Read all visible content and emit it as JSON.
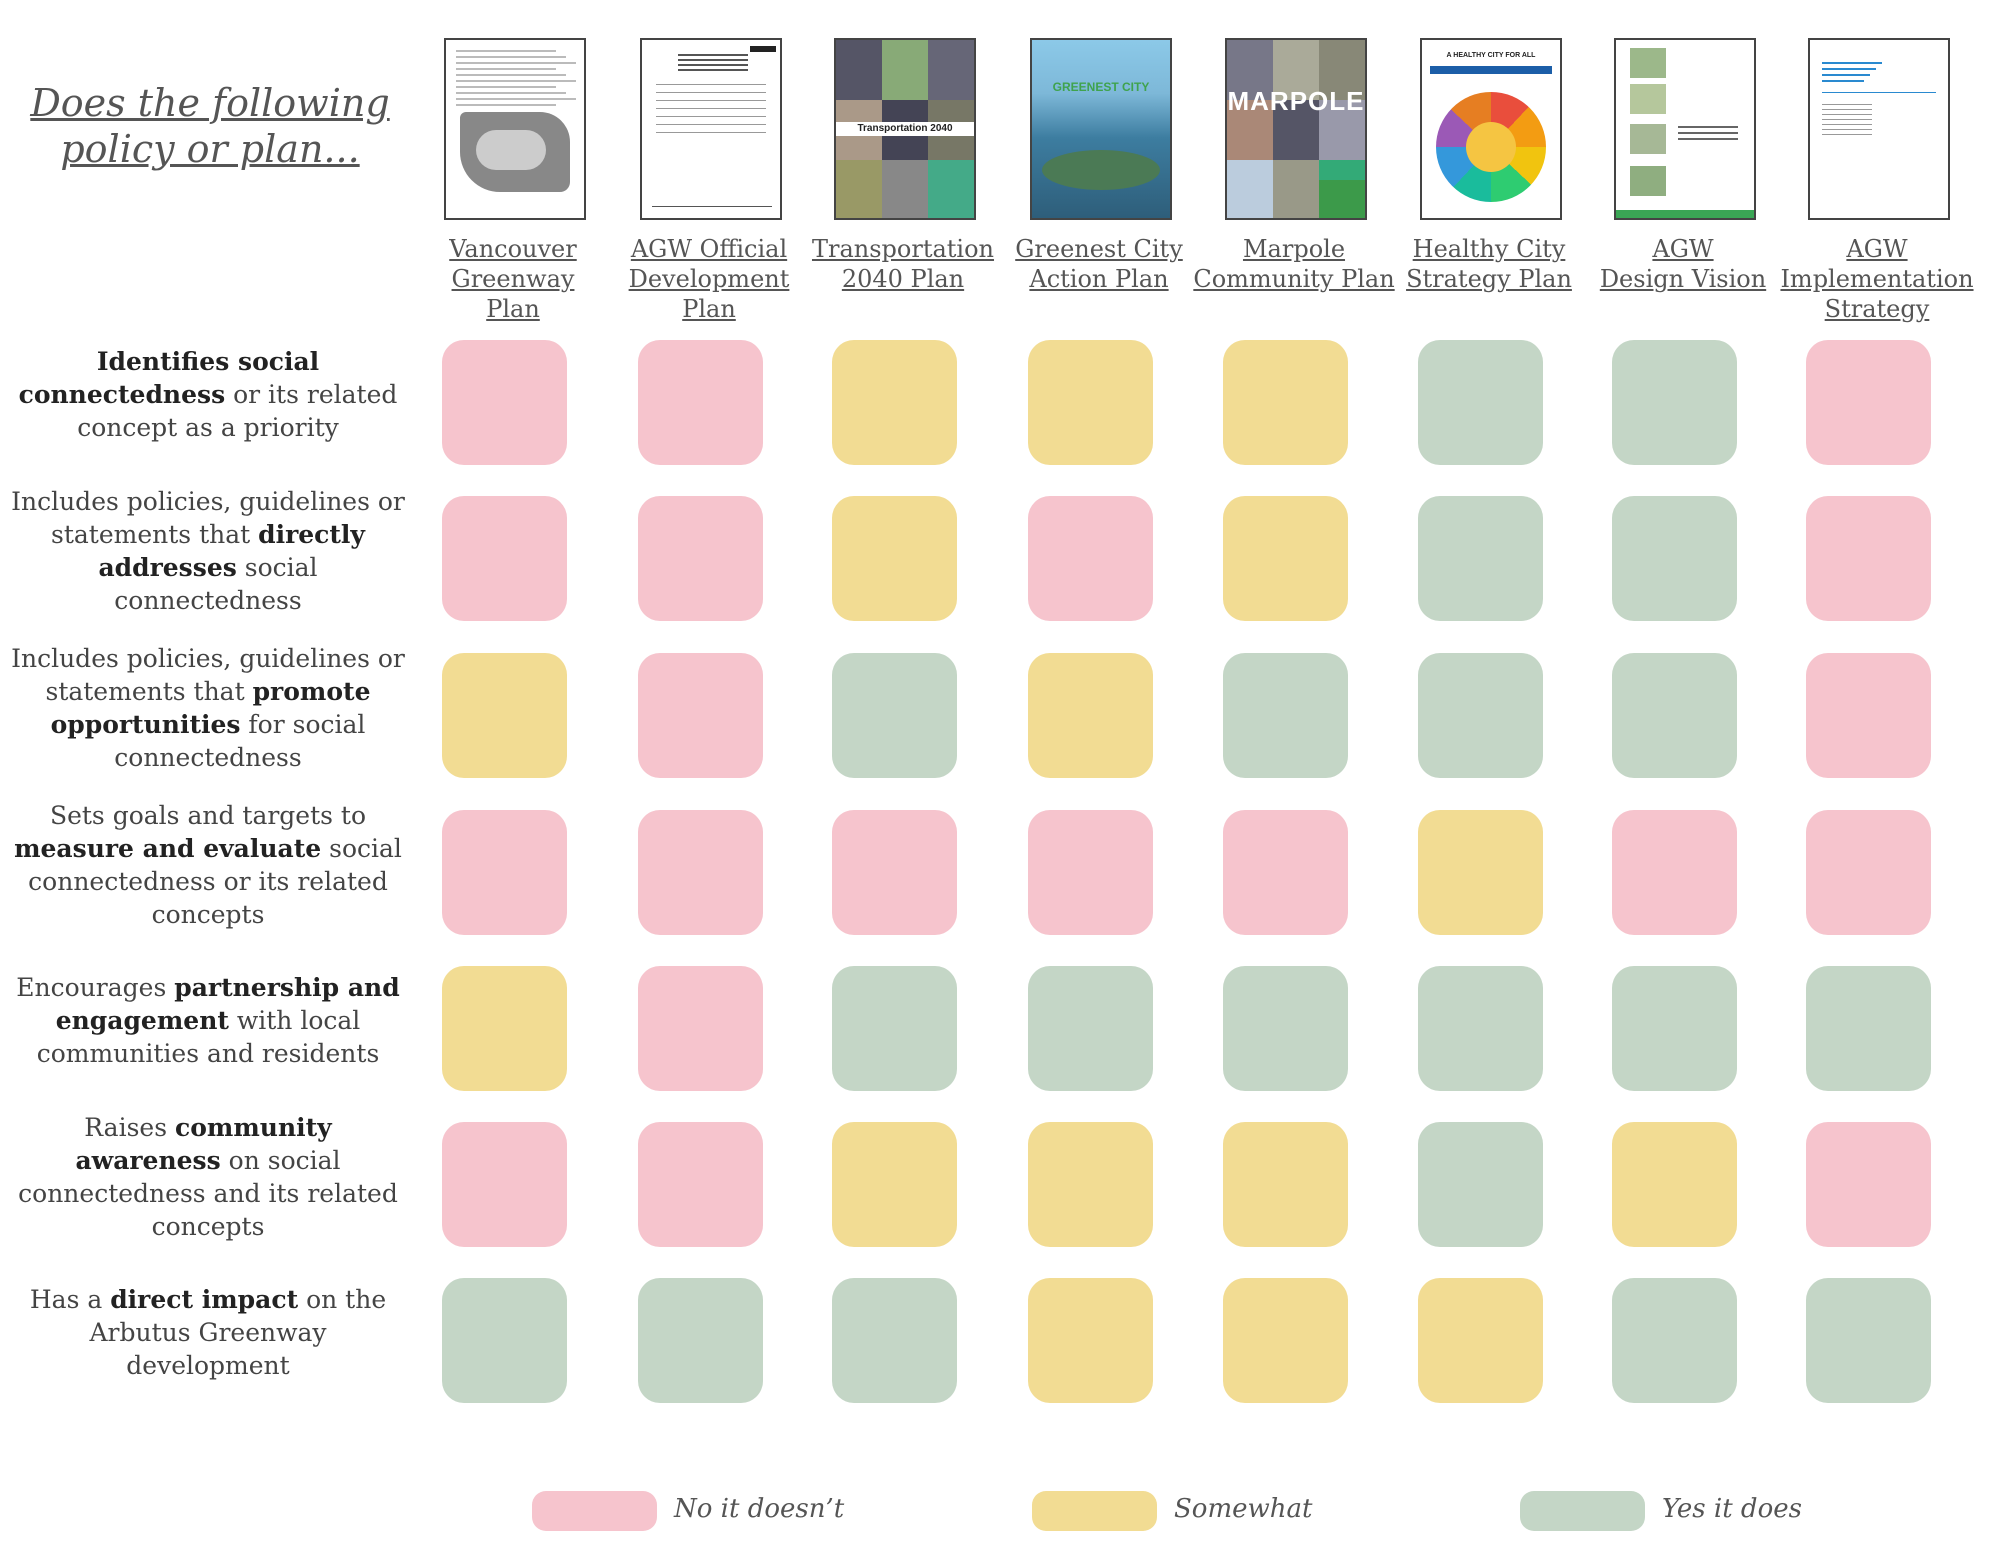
{
  "heading": "Does the following policy or plan...",
  "colors": {
    "no": "#f6c4cd",
    "somewhat": "#f2dc93",
    "yes": "#c4d6c6"
  },
  "columns": [
    {
      "label_lines": [
        "Vancouver",
        "Greenway",
        "Plan"
      ],
      "thumb": "doc-map",
      "cover_text": ""
    },
    {
      "label_lines": [
        "AGW Official",
        "Development",
        "Plan"
      ],
      "thumb": "doc-text",
      "cover_text": ""
    },
    {
      "label_lines": [
        "Transportation",
        "2040 Plan"
      ],
      "thumb": "doc-photos",
      "cover_text": "Transportation 2040"
    },
    {
      "label_lines": [
        "Greenest City",
        "Action Plan"
      ],
      "thumb": "doc-greenest",
      "cover_text": "GREENEST CITY"
    },
    {
      "label_lines": [
        "Marpole",
        "Community Plan"
      ],
      "thumb": "doc-marpole",
      "cover_text": "MARPOLE"
    },
    {
      "label_lines": [
        "Healthy City",
        "Strategy Plan"
      ],
      "thumb": "doc-healthy",
      "cover_text": "A HEALTHY CITY FOR ALL"
    },
    {
      "label_lines": [
        "AGW",
        "Design Vision"
      ],
      "thumb": "doc-design",
      "cover_text": ""
    },
    {
      "label_lines": [
        "AGW",
        "Implementation",
        "Strategy"
      ],
      "thumb": "doc-impl",
      "cover_text": ""
    }
  ],
  "rows": [
    {
      "parts": [
        [
          "b",
          "Identifies social connectedness"
        ],
        [
          "n",
          " or its related concept as a priority"
        ]
      ],
      "ratings": [
        "no",
        "no",
        "somewhat",
        "somewhat",
        "somewhat",
        "yes",
        "yes",
        "no"
      ]
    },
    {
      "parts": [
        [
          "n",
          "Includes policies, guidelines or statements that "
        ],
        [
          "b",
          "directly addresses"
        ],
        [
          "n",
          " social connectedness"
        ]
      ],
      "ratings": [
        "no",
        "no",
        "somewhat",
        "no",
        "somewhat",
        "yes",
        "yes",
        "no"
      ]
    },
    {
      "parts": [
        [
          "n",
          "Includes policies, guidelines or statements that "
        ],
        [
          "b",
          "promote opportunities"
        ],
        [
          "n",
          " for social connectedness"
        ]
      ],
      "ratings": [
        "somewhat",
        "no",
        "yes",
        "somewhat",
        "yes",
        "yes",
        "yes",
        "no"
      ]
    },
    {
      "parts": [
        [
          "n",
          "Sets goals and targets to "
        ],
        [
          "b",
          "measure and evaluate"
        ],
        [
          "n",
          " social connectedness or its related concepts"
        ]
      ],
      "ratings": [
        "no",
        "no",
        "no",
        "no",
        "no",
        "somewhat",
        "no",
        "no"
      ]
    },
    {
      "parts": [
        [
          "n",
          "Encourages "
        ],
        [
          "b",
          "partnership and engagement"
        ],
        [
          "n",
          " with local communities and residents"
        ]
      ],
      "ratings": [
        "somewhat",
        "no",
        "yes",
        "yes",
        "yes",
        "yes",
        "yes",
        "yes"
      ]
    },
    {
      "parts": [
        [
          "n",
          "Raises "
        ],
        [
          "b",
          "community awareness"
        ],
        [
          "n",
          " on social connectedness and its related concepts"
        ]
      ],
      "ratings": [
        "no",
        "no",
        "somewhat",
        "somewhat",
        "somewhat",
        "yes",
        "somewhat",
        "no"
      ]
    },
    {
      "parts": [
        [
          "n",
          "Has a "
        ],
        [
          "b",
          "direct impact"
        ],
        [
          "n",
          " on the Arbutus Greenway development"
        ]
      ],
      "ratings": [
        "yes",
        "yes",
        "yes",
        "somewhat",
        "somewhat",
        "somewhat",
        "yes",
        "yes"
      ]
    }
  ],
  "legend": [
    {
      "key": "no",
      "label": "No it doesn’t"
    },
    {
      "key": "somewhat",
      "label": "Somewhat"
    },
    {
      "key": "yes",
      "label": "Yes it does"
    }
  ]
}
